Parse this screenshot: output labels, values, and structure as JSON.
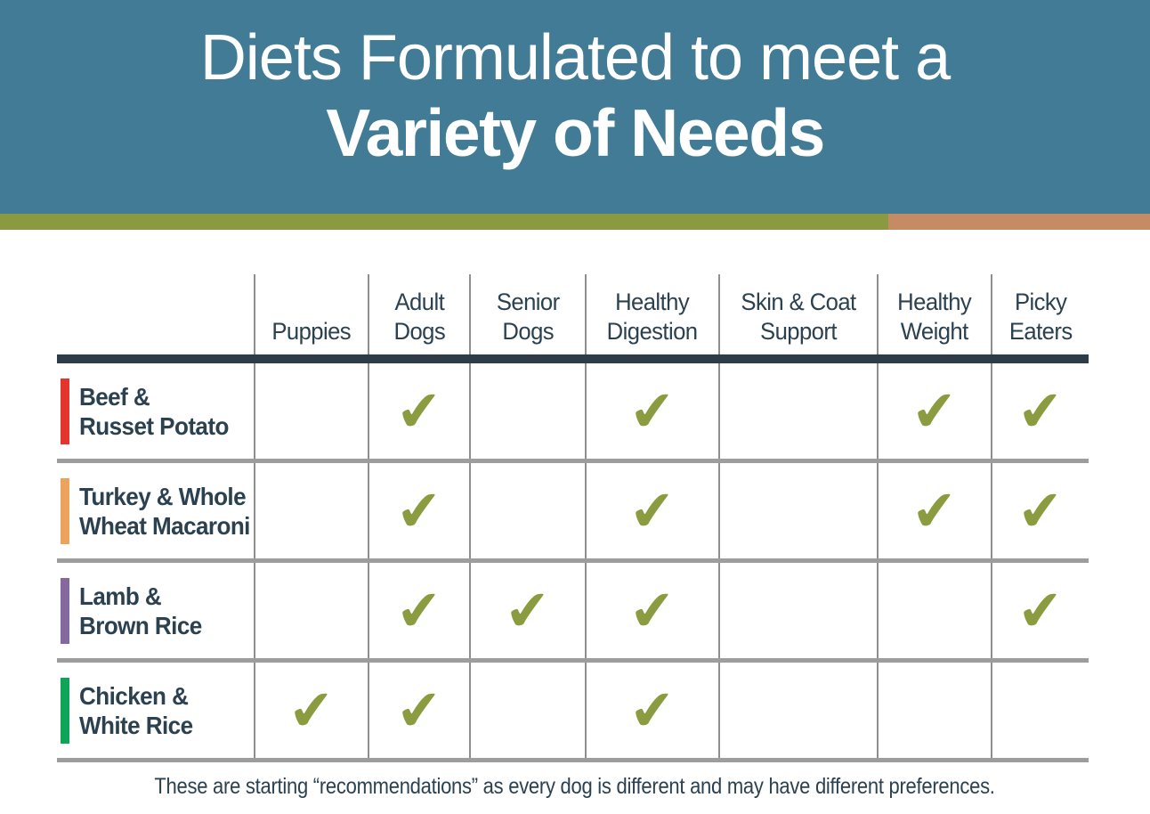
{
  "colors": {
    "banner_bg": "#417b95",
    "stripe_green": "#8b9a41",
    "stripe_tan": "#c48b64",
    "text_dark": "#2b4150",
    "title_text": "#ffffff",
    "check": "#8b9c40",
    "thick_bar": "#2d3c48",
    "row_line": "#9d9d9d",
    "col_line": "#8f8f8f"
  },
  "header": {
    "title_line1": "Diets Formulated to meet a",
    "title_line2": "Variety of Needs"
  },
  "table": {
    "columns": [
      {
        "line1": "",
        "line2": "Puppies"
      },
      {
        "line1": "Adult",
        "line2": "Dogs"
      },
      {
        "line1": "Senior",
        "line2": "Dogs"
      },
      {
        "line1": "Healthy",
        "line2": "Digestion"
      },
      {
        "line1": "Skin & Coat",
        "line2": "Support"
      },
      {
        "line1": "Healthy",
        "line2": "Weight"
      },
      {
        "line1": "Picky",
        "line2": "Eaters"
      }
    ],
    "rows": [
      {
        "label_line1": "Beef &",
        "label_line2": "Russet Potato",
        "bar_color": "#e5342e",
        "cells": [
          "",
          "✔",
          "",
          "✔",
          "",
          "✔",
          "✔"
        ]
      },
      {
        "label_line1": "Turkey & Whole",
        "label_line2": "Wheat Macaroni",
        "bar_color": "#eda35c",
        "cells": [
          "",
          "✔",
          "",
          "✔",
          "",
          "✔",
          "✔"
        ]
      },
      {
        "label_line1": "Lamb &",
        "label_line2": "Brown Rice",
        "bar_color": "#84689f",
        "cells": [
          "",
          "✔",
          "✔",
          "✔",
          "",
          "",
          "✔"
        ]
      },
      {
        "label_line1": "Chicken &",
        "label_line2": "White Rice",
        "bar_color": "#0fa558",
        "cells": [
          "✔",
          "✔",
          "",
          "✔",
          "",
          "",
          ""
        ]
      }
    ]
  },
  "footer": {
    "note": "These are starting “recommendations” as every dog is different and may have different preferences."
  }
}
